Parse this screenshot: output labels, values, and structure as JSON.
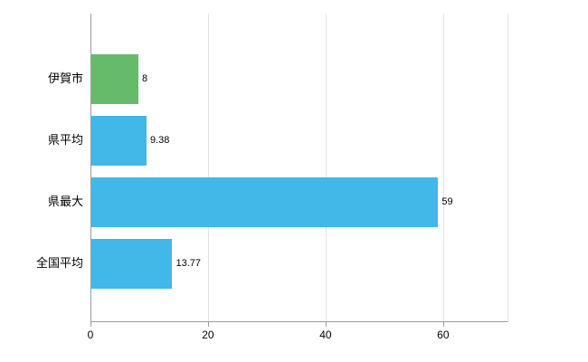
{
  "chart_data": {
    "type": "bar",
    "orientation": "horizontal",
    "title": "",
    "xlabel": "",
    "ylabel": "",
    "categories": [
      "伊賀市",
      "県平均",
      "県最大",
      "全国平均"
    ],
    "values": [
      8,
      9.38,
      59,
      13.77
    ],
    "value_labels": [
      "8",
      "9.38",
      "59",
      "13.77"
    ],
    "bar_colors": [
      "#66bb6a",
      "#41b8e8",
      "#41b8e8",
      "#41b8e8"
    ],
    "xlim": [
      0,
      70.8
    ],
    "x_ticks": [
      0,
      20,
      40,
      60
    ],
    "grid": true,
    "legend": false,
    "colors": {
      "background": "#ffffff",
      "axis": "#9a9a9a",
      "gridline": "#e3e3e3",
      "text": "#000000"
    }
  }
}
